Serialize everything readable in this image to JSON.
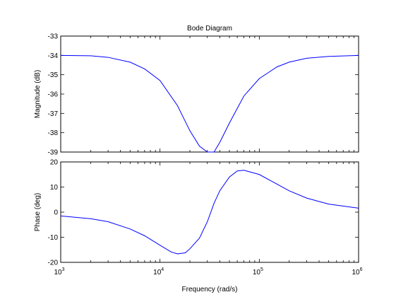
{
  "chart_data": [
    {
      "type": "line",
      "title": "Bode Diagram",
      "ylabel": "Magnitude (dB)",
      "xscale": "log",
      "xlim": [
        1000,
        1000000
      ],
      "ylim": [
        -39,
        -33
      ],
      "yticks": [
        -33,
        -34,
        -35,
        -36,
        -37,
        -38,
        -39
      ],
      "line_color": "#0000ff",
      "series": [
        {
          "x": [
            1000,
            2000,
            3000,
            5000,
            7000,
            10000,
            15000,
            20000,
            25000,
            30000,
            35000,
            40000,
            50000,
            70000,
            100000,
            150000,
            200000,
            300000,
            500000,
            1000000
          ],
          "y": [
            -34.0,
            -34.02,
            -34.1,
            -34.35,
            -34.7,
            -35.3,
            -36.6,
            -37.9,
            -38.7,
            -39.0,
            -39.0,
            -38.5,
            -37.5,
            -36.1,
            -35.2,
            -34.6,
            -34.35,
            -34.15,
            -34.05,
            -34.0
          ]
        }
      ]
    },
    {
      "type": "line",
      "xlabel": "Frequency  (rad/s)",
      "ylabel": "Phase (deg)",
      "xscale": "log",
      "xlim": [
        1000,
        1000000
      ],
      "ylim": [
        -20,
        20
      ],
      "yticks": [
        20,
        10,
        0,
        -10,
        -20
      ],
      "xticks": [
        {
          "base": "10",
          "exp": "3"
        },
        {
          "base": "10",
          "exp": "4"
        },
        {
          "base": "10",
          "exp": "5"
        },
        {
          "base": "10",
          "exp": "6"
        }
      ],
      "line_color": "#0000ff",
      "series": [
        {
          "x": [
            1000,
            2000,
            3000,
            5000,
            7000,
            10000,
            13000,
            15000,
            18000,
            20000,
            25000,
            30000,
            35000,
            40000,
            50000,
            60000,
            70000,
            100000,
            150000,
            200000,
            300000,
            500000,
            1000000
          ],
          "y": [
            -1.5,
            -2.6,
            -3.8,
            -6.7,
            -9.4,
            -13.2,
            -15.9,
            -16.6,
            -16.2,
            -14.6,
            -10.3,
            -3.8,
            3.5,
            8.5,
            14.0,
            16.4,
            16.7,
            15.0,
            11.2,
            8.5,
            5.6,
            3.2,
            1.6
          ]
        }
      ]
    }
  ]
}
